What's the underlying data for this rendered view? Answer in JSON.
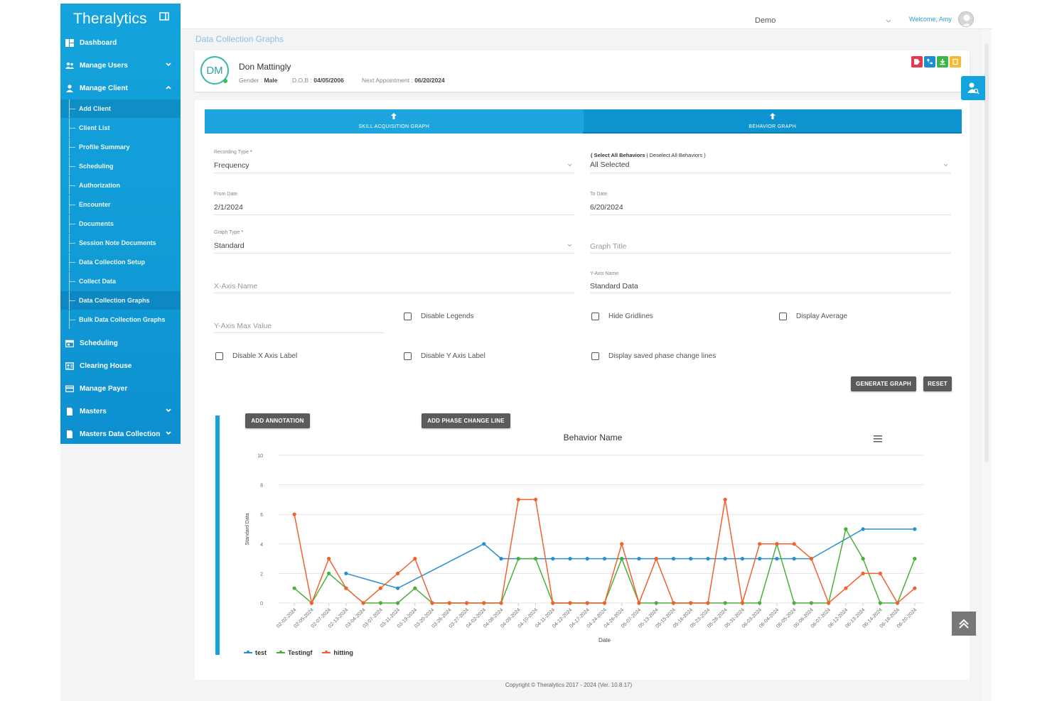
{
  "app": {
    "logo_text": "Theralytics",
    "breadcrumb": "Data Collection Graphs"
  },
  "topbar": {
    "org": "Demo",
    "welcome": "Welcome, Amy"
  },
  "sidebar": {
    "items": [
      {
        "label": "Dashboard",
        "icon": "dashboard-icon"
      },
      {
        "label": "Manage Users",
        "icon": "users-icon"
      },
      {
        "label": "Manage Client",
        "icon": "user-icon"
      },
      {
        "label": "Scheduling",
        "icon": "calendar-icon"
      },
      {
        "label": "Clearing House",
        "icon": "id-card-icon"
      },
      {
        "label": "Manage Payer",
        "icon": "credit-card-icon"
      },
      {
        "label": "Masters",
        "icon": "file-icon"
      },
      {
        "label": "Masters Data Collection",
        "icon": "file-icon"
      }
    ],
    "client_subitems": [
      "Add Client",
      "Client List",
      "Profile Summary",
      "Scheduling",
      "Authorization",
      "Encounter",
      "Documents",
      "Session Note Documents",
      "Data Collection Setup",
      "Collect Data",
      "Data Collection Graphs",
      "Bulk Data Collection Graphs"
    ]
  },
  "client": {
    "initials": "DM",
    "name": "Don Mattingly",
    "gender_label": "Gender :",
    "gender": "Male",
    "dob_label": "D.O.B :",
    "dob": "04/05/2006",
    "next_label": "Next Appointment :",
    "next": "06/20/2024"
  },
  "tabs": {
    "skill": "SKILL ACQUISITION GRAPH",
    "behavior": "BEHAVIOR GRAPH"
  },
  "form": {
    "recording_type_label": "Recording Type",
    "recording_type": "Frequency",
    "select_all": "( Select All Behaviors",
    "deselect_all": "| Deselect All Behaviors )",
    "behaviors": "All Selected",
    "from_label": "From Date",
    "from": "2/1/2024",
    "to_label": "To Date",
    "to": "6/20/2024",
    "graph_type_label": "Graph Type",
    "graph_type": "Standard",
    "graph_title_placeholder": "Graph Title",
    "xaxis_placeholder": "X-Axis Name",
    "yaxis_label": "Y-Axis Name",
    "yaxis": "Standard Data",
    "ymax_placeholder": "Y-Axis Max Value",
    "cb_disable_legends": "Disable Legends",
    "cb_hide_gridlines": "Hide Gridlines",
    "cb_display_average": "Display Average",
    "cb_disable_x": "Disable X Axis Label",
    "cb_disable_y": "Disable Y Axis Label",
    "cb_phase_lines": "Display saved phase change lines",
    "generate": "GENERATE GRAPH",
    "reset": "RESET"
  },
  "chart_actions": {
    "annotation": "ADD ANNOTATION",
    "phase": "ADD PHASE CHANGE LINE"
  },
  "chart_data": {
    "type": "line",
    "title": "Behavior Name",
    "xlabel": "Date",
    "ylabel": "Standard Data",
    "ylim": [
      0,
      10
    ],
    "yticks": [
      0,
      2,
      4,
      6,
      8,
      10
    ],
    "grid": true,
    "legend_position": "bottom-left",
    "categories": [
      "02-02-2024",
      "02-05-2024",
      "02-07-2024",
      "02-13-2024",
      "03-04-2024",
      "03-07-2024",
      "03-11-2024",
      "03-19-2024",
      "03-20-2024",
      "03-26-2024",
      "03-27-2024",
      "04-02-2024",
      "04-08-2024",
      "04-09-2024",
      "04-10-2024",
      "04-11-2024",
      "04-12-2024",
      "04-17-2024",
      "04-24-2024",
      "04-26-2024",
      "05-07-2024",
      "05-13-2024",
      "05-15-2024",
      "05-16-2024",
      "05-23-2024",
      "05-28-2024",
      "05-31-2024",
      "06-03-2024",
      "06-04-2024",
      "06-05-2024",
      "06-06-2024",
      "06-07-2024",
      "06-12-2024",
      "06-13-2024",
      "06-14-2024",
      "06-18-2024",
      "06-20-2024"
    ],
    "series": [
      {
        "name": "test",
        "color": "#2b8fce",
        "values": [
          null,
          null,
          null,
          2,
          null,
          null,
          1,
          null,
          null,
          null,
          null,
          4,
          3,
          3,
          3,
          3,
          3,
          3,
          3,
          3,
          3,
          3,
          3,
          3,
          3,
          3,
          3,
          3,
          3,
          3,
          3,
          null,
          null,
          5,
          null,
          null,
          5
        ]
      },
      {
        "name": "Testingf",
        "color": "#4caf3c",
        "values": [
          1,
          0,
          2,
          1,
          0,
          0,
          0,
          1,
          0,
          0,
          0,
          0,
          0,
          3,
          3,
          0,
          0,
          0,
          0,
          3,
          0,
          0,
          0,
          0,
          0,
          0,
          0,
          0,
          4,
          0,
          0,
          0,
          5,
          3,
          0,
          0,
          3
        ]
      },
      {
        "name": "hitting",
        "color": "#f2612d",
        "values": [
          6,
          0,
          3,
          1,
          0,
          1,
          2,
          3,
          0,
          0,
          0,
          0,
          0,
          7,
          7,
          0,
          0,
          0,
          0,
          4,
          0,
          3,
          0,
          0,
          0,
          7,
          0,
          4,
          4,
          4,
          3,
          0,
          1,
          2,
          2,
          0,
          1
        ]
      }
    ]
  },
  "footer": {
    "copyright": "Copyright © Theralytics 2017 - 2024 (Ver. 10.8.17)"
  }
}
